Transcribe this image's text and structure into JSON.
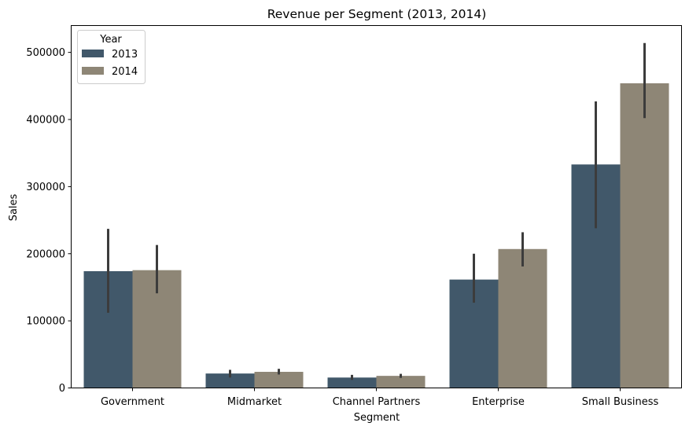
{
  "chart_data": {
    "type": "bar",
    "title": "Revenue per Segment (2013, 2014)",
    "xlabel": "Segment",
    "ylabel": "Sales",
    "categories": [
      "Government",
      "Midmarket",
      "Channel Partners",
      "Enterprise",
      "Small Business"
    ],
    "series": [
      {
        "name": "2013",
        "color": "#41586a",
        "values": [
          174000,
          21500,
          15500,
          161500,
          333000
        ],
        "err_low": [
          112000,
          15500,
          12000,
          127000,
          238000
        ],
        "err_high": [
          237000,
          27000,
          19500,
          200000,
          427000
        ]
      },
      {
        "name": "2014",
        "color": "#8e8676",
        "values": [
          175500,
          24000,
          18000,
          207000,
          454000
        ],
        "err_low": [
          141000,
          20000,
          15000,
          181000,
          402000
        ],
        "err_high": [
          213000,
          28500,
          21000,
          232000,
          514000
        ]
      }
    ],
    "yticks": [
      0,
      100000,
      200000,
      300000,
      400000,
      500000
    ],
    "ytick_labels": [
      "0",
      "100000",
      "200000",
      "300000",
      "400000",
      "500000"
    ],
    "ylim": [
      0,
      540000
    ],
    "legend": {
      "title": "Year",
      "position": "top-left"
    },
    "grid": false,
    "error_bar_color": "#3c3c3c"
  }
}
